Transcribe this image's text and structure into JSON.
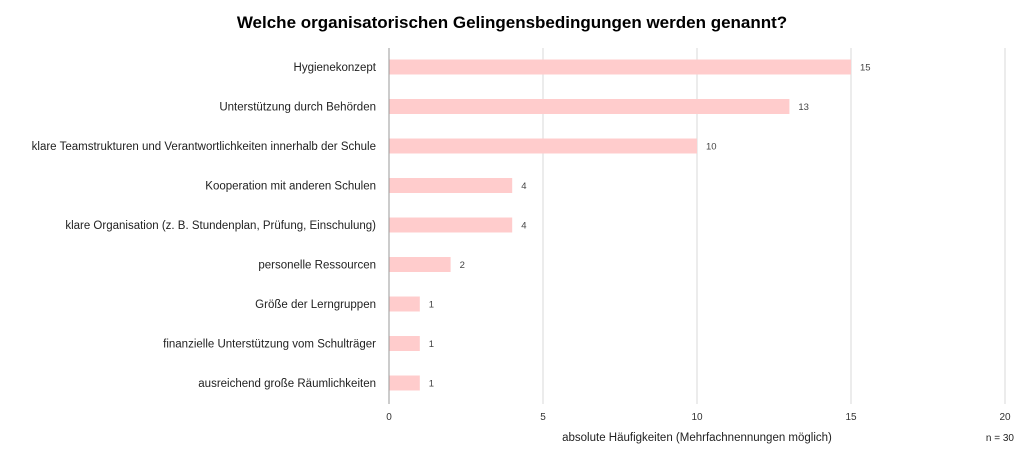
{
  "chart_data": {
    "type": "bar",
    "orientation": "horizontal",
    "title": "Welche organisatorischen  Gelingensbedingungen  werden genannt?",
    "xlabel": "absolute Häufigkeiten (Mehrfachnennungen möglich)",
    "ylabel": "",
    "note": "n = 30",
    "categories": [
      "Hygienekonzept",
      "Unterstützung durch Behörden",
      "klare Teamstrukturen und Verantwortlichkeiten innerhalb der Schule",
      "Kooperation mit anderen Schulen",
      "klare Organisation (z. B. Stundenplan, Prüfung, Einschulung)",
      "personelle Ressourcen",
      "Größe der Lerngruppen",
      "finanzielle Unterstützung vom Schulträger",
      "ausreichend große Räumlichkeiten"
    ],
    "values": [
      15,
      13,
      10,
      4,
      4,
      2,
      1,
      1,
      1
    ],
    "xlim": [
      0,
      20
    ],
    "xticks": [
      0,
      5,
      10,
      15,
      20
    ],
    "grid": true,
    "legend": "none",
    "bar_color": "#ffcccc"
  }
}
